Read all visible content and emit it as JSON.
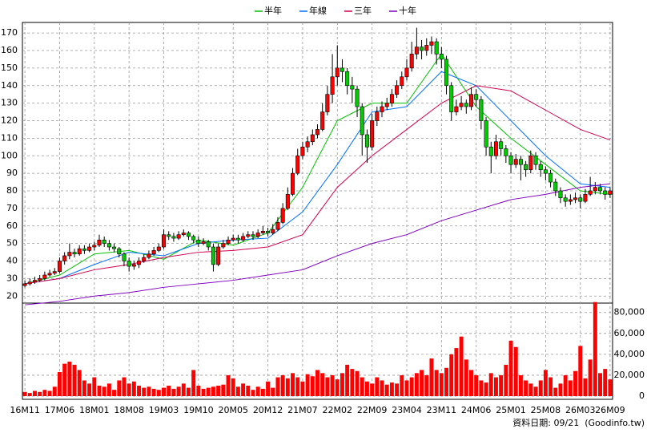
{
  "chart_data": {
    "type": "candlestick",
    "categories": [
      "16M11",
      null,
      null,
      null,
      null,
      null,
      null,
      "17M06",
      null,
      null,
      null,
      null,
      null,
      null,
      "18M01",
      null,
      null,
      null,
      null,
      null,
      null,
      "18M08",
      null,
      null,
      null,
      null,
      null,
      null,
      "19M03",
      null,
      null,
      null,
      null,
      null,
      null,
      "19M10",
      null,
      null,
      null,
      null,
      null,
      null,
      "20M05",
      null,
      null,
      null,
      null,
      null,
      null,
      "20M12",
      null,
      null,
      null,
      null,
      null,
      null,
      "21M07",
      null,
      null,
      null,
      null,
      null,
      null,
      "22M02",
      null,
      null,
      null,
      null,
      null,
      null,
      "22M09",
      null,
      null,
      null,
      null,
      null,
      null,
      "23M04",
      null,
      null,
      null,
      null,
      null,
      null,
      "23M11",
      null,
      null,
      null,
      null,
      null,
      null,
      "24M06",
      null,
      null,
      null,
      null,
      null,
      null,
      "25M01",
      null,
      null,
      null,
      null,
      null,
      null,
      "25M08",
      null,
      null,
      null,
      null,
      null,
      null,
      "26M03",
      null,
      null,
      null,
      null,
      null,
      "26M09"
    ],
    "ohlc": [
      [
        26,
        29,
        25,
        27
      ],
      [
        27,
        30,
        26,
        28
      ],
      [
        28,
        31,
        27,
        29
      ],
      [
        29,
        32,
        28,
        30
      ],
      [
        30,
        34,
        29,
        32
      ],
      [
        32,
        35,
        31,
        33
      ],
      [
        33,
        36,
        32,
        34
      ],
      [
        34,
        42,
        33,
        40
      ],
      [
        40,
        45,
        38,
        43
      ],
      [
        43,
        50,
        41,
        45
      ],
      [
        45,
        47,
        42,
        44
      ],
      [
        44,
        49,
        43,
        47
      ],
      [
        47,
        49,
        44,
        46
      ],
      [
        46,
        50,
        45,
        48
      ],
      [
        48,
        51,
        46,
        49
      ],
      [
        49,
        55,
        48,
        52
      ],
      [
        52,
        54,
        48,
        50
      ],
      [
        50,
        52,
        46,
        48
      ],
      [
        48,
        50,
        45,
        47
      ],
      [
        47,
        48,
        42,
        44
      ],
      [
        44,
        45,
        37,
        40
      ],
      [
        40,
        42,
        34,
        37
      ],
      [
        37,
        40,
        35,
        38
      ],
      [
        38,
        42,
        36,
        40
      ],
      [
        40,
        44,
        39,
        42
      ],
      [
        42,
        46,
        41,
        44
      ],
      [
        44,
        48,
        43,
        46
      ],
      [
        46,
        50,
        45,
        48
      ],
      [
        48,
        58,
        47,
        55
      ],
      [
        55,
        57,
        52,
        54
      ],
      [
        54,
        56,
        51,
        53
      ],
      [
        53,
        57,
        52,
        55
      ],
      [
        55,
        58,
        54,
        56
      ],
      [
        56,
        57,
        52,
        54
      ],
      [
        54,
        55,
        50,
        52
      ],
      [
        52,
        54,
        48,
        50
      ],
      [
        50,
        53,
        49,
        51
      ],
      [
        51,
        52,
        46,
        48
      ],
      [
        48,
        50,
        34,
        38
      ],
      [
        38,
        50,
        37,
        48
      ],
      [
        48,
        52,
        47,
        50
      ],
      [
        50,
        54,
        49,
        52
      ],
      [
        52,
        55,
        51,
        53
      ],
      [
        53,
        55,
        50,
        52
      ],
      [
        52,
        56,
        51,
        54
      ],
      [
        54,
        57,
        53,
        55
      ],
      [
        55,
        57,
        52,
        54
      ],
      [
        54,
        58,
        53,
        56
      ],
      [
        56,
        60,
        55,
        57
      ],
      [
        57,
        59,
        54,
        56
      ],
      [
        56,
        61,
        55,
        58
      ],
      [
        58,
        65,
        57,
        62
      ],
      [
        62,
        73,
        61,
        70
      ],
      [
        70,
        82,
        69,
        78
      ],
      [
        78,
        93,
        77,
        90
      ],
      [
        90,
        104,
        89,
        100
      ],
      [
        100,
        108,
        98,
        105
      ],
      [
        105,
        111,
        102,
        108
      ],
      [
        108,
        115,
        106,
        112
      ],
      [
        112,
        118,
        110,
        115
      ],
      [
        115,
        130,
        114,
        125
      ],
      [
        125,
        140,
        123,
        135
      ],
      [
        135,
        158,
        130,
        145
      ],
      [
        145,
        163,
        140,
        150
      ],
      [
        150,
        155,
        142,
        148
      ],
      [
        148,
        150,
        135,
        140
      ],
      [
        140,
        145,
        130,
        138
      ],
      [
        138,
        140,
        122,
        128
      ],
      [
        128,
        130,
        100,
        112
      ],
      [
        112,
        115,
        96,
        105
      ],
      [
        105,
        124,
        103,
        120
      ],
      [
        120,
        128,
        117,
        125
      ],
      [
        125,
        131,
        122,
        128
      ],
      [
        128,
        133,
        126,
        130
      ],
      [
        130,
        138,
        128,
        135
      ],
      [
        135,
        143,
        133,
        140
      ],
      [
        140,
        148,
        138,
        145
      ],
      [
        145,
        155,
        143,
        150
      ],
      [
        150,
        165,
        148,
        158
      ],
      [
        158,
        173,
        155,
        162
      ],
      [
        162,
        166,
        155,
        160
      ],
      [
        160,
        167,
        157,
        163
      ],
      [
        163,
        168,
        158,
        165
      ],
      [
        165,
        167,
        152,
        158
      ],
      [
        158,
        162,
        150,
        155
      ],
      [
        155,
        157,
        135,
        140
      ],
      [
        140,
        142,
        120,
        125
      ],
      [
        125,
        132,
        123,
        128
      ],
      [
        128,
        134,
        126,
        130
      ],
      [
        130,
        132,
        124,
        128
      ],
      [
        128,
        139,
        126,
        135
      ],
      [
        135,
        138,
        128,
        132
      ],
      [
        132,
        134,
        115,
        120
      ],
      [
        120,
        122,
        100,
        105
      ],
      [
        105,
        108,
        90,
        100
      ],
      [
        100,
        112,
        98,
        108
      ],
      [
        108,
        110,
        100,
        104
      ],
      [
        104,
        106,
        96,
        100
      ],
      [
        100,
        102,
        90,
        95
      ],
      [
        95,
        101,
        93,
        98
      ],
      [
        98,
        100,
        86,
        95
      ],
      [
        95,
        97,
        88,
        92
      ],
      [
        92,
        103,
        90,
        100
      ],
      [
        100,
        102,
        92,
        95
      ],
      [
        95,
        97,
        88,
        92
      ],
      [
        92,
        94,
        86,
        90
      ],
      [
        90,
        92,
        82,
        85
      ],
      [
        85,
        87,
        77,
        80
      ],
      [
        80,
        82,
        73,
        76
      ],
      [
        76,
        78,
        71,
        74
      ],
      [
        74,
        78,
        72,
        75
      ],
      [
        75,
        79,
        73,
        76
      ],
      [
        76,
        78,
        70,
        74
      ],
      [
        74,
        81,
        73,
        78
      ],
      [
        78,
        88,
        77,
        80
      ],
      [
        80,
        85,
        78,
        82
      ],
      [
        82,
        84,
        78,
        80
      ],
      [
        80,
        82,
        75,
        78
      ],
      [
        78,
        82,
        76,
        80
      ]
    ],
    "up_color": "#ff0000",
    "down_color": "#00cc00",
    "ylim": [
      16,
      176
    ],
    "yticks": [
      20,
      30,
      40,
      50,
      60,
      70,
      80,
      90,
      100,
      110,
      120,
      130,
      140,
      150,
      160,
      170
    ],
    "grid": true,
    "lines": [
      {
        "name": "半年",
        "color": "#00c000",
        "x": [
          0,
          7,
          14,
          21,
          28,
          35,
          42,
          49,
          56,
          63,
          70,
          77,
          84,
          91,
          98,
          105,
          112,
          118
        ],
        "values": [
          27,
          32,
          44,
          46,
          41,
          52,
          49,
          56,
          82,
          120,
          130,
          130,
          158,
          128,
          110,
          95,
          80,
          78
        ]
      },
      {
        "name": "年線",
        "color": "#0070ff",
        "x": [
          0,
          7,
          14,
          21,
          28,
          35,
          42,
          49,
          56,
          63,
          70,
          77,
          84,
          91,
          98,
          105,
          112,
          118
        ],
        "values": [
          27,
          30,
          38,
          45,
          43,
          50,
          52,
          53,
          68,
          95,
          125,
          128,
          148,
          140,
          120,
          100,
          84,
          82
        ]
      },
      {
        "name": "三年",
        "color": "#d00050",
        "x": [
          0,
          7,
          14,
          21,
          28,
          35,
          42,
          49,
          56,
          63,
          70,
          77,
          84,
          91,
          98,
          105,
          112,
          118
        ],
        "values": [
          27,
          30,
          35,
          38,
          42,
          45,
          46,
          48,
          55,
          82,
          100,
          115,
          130,
          140,
          137,
          126,
          115,
          109
        ]
      },
      {
        "name": "十年",
        "color": "#8000c0",
        "x": [
          0,
          7,
          14,
          21,
          28,
          35,
          42,
          49,
          56,
          63,
          70,
          77,
          84,
          91,
          98,
          105,
          112,
          118
        ],
        "values": [
          15,
          17,
          20,
          22,
          25,
          27,
          29,
          32,
          35,
          43,
          50,
          55,
          63,
          69,
          75,
          78,
          82,
          84
        ]
      }
    ],
    "volume": {
      "type": "bar",
      "color": "#ff0000",
      "values": [
        4000,
        3000,
        5000,
        4000,
        6000,
        5000,
        9000,
        23000,
        31000,
        33000,
        30000,
        25000,
        15000,
        12000,
        18000,
        10000,
        9000,
        12000,
        6000,
        15000,
        18000,
        12000,
        14000,
        10000,
        8000,
        9000,
        7000,
        6000,
        8000,
        10000,
        7000,
        9000,
        12000,
        8000,
        25000,
        10000,
        7000,
        8000,
        9000,
        10000,
        11000,
        20000,
        17000,
        9000,
        12000,
        10000,
        6000,
        9000,
        7000,
        14000,
        8000,
        18000,
        20000,
        17000,
        22000,
        18000,
        14000,
        21000,
        19000,
        25000,
        22000,
        18000,
        20000,
        16000,
        22000,
        30000,
        26000,
        24000,
        18000,
        14000,
        12000,
        18000,
        15000,
        11000,
        13000,
        12000,
        20000,
        15000,
        18000,
        22000,
        25000,
        20000,
        36000,
        25000,
        22000,
        27000,
        40000,
        46000,
        57000,
        35000,
        25000,
        20000,
        15000,
        13000,
        22000,
        18000,
        20000,
        30000,
        53000,
        47000,
        20000,
        15000,
        12000,
        9000,
        15000,
        25000,
        18000,
        8000,
        12000,
        20000,
        15000,
        24000,
        48000,
        17000,
        35000,
        90000,
        22000,
        26000,
        16000
      ],
      "ylim": [
        0,
        89000
      ],
      "yticks": [
        0,
        {
          "value": 20000,
          "label": "20,000"
        },
        {
          "value": 40000,
          "label": "40,000"
        },
        {
          "value": 60000,
          "label": "60,000"
        },
        {
          "value": 80000,
          "label": "80,000"
        }
      ]
    },
    "footer": "資料日期: 09/21  (Goodinfo.tw)"
  }
}
